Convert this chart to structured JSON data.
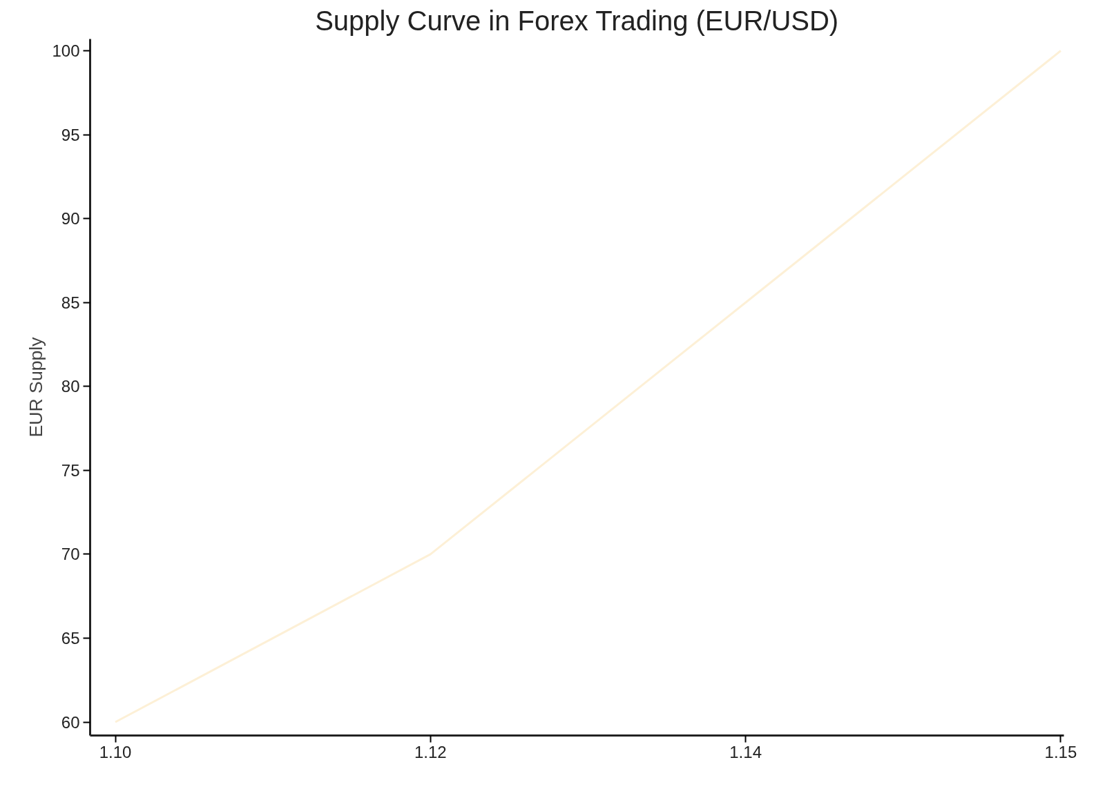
{
  "chart_data": {
    "type": "line",
    "title": "Supply Curve in Forex Trading (EUR/USD)",
    "ylabel": "EUR Supply",
    "categories": [
      "1.10",
      "1.12",
      "1.14",
      "1.15"
    ],
    "series": [
      {
        "color": "#fdf0d6",
        "values": [
          60,
          70,
          85,
          100
        ]
      }
    ],
    "ylim": [
      59.2,
      100.7
    ],
    "yticks": [
      60,
      65,
      70,
      75,
      80,
      85,
      90,
      95,
      100
    ],
    "grid": false,
    "marker": "none",
    "line_style": "solid"
  }
}
